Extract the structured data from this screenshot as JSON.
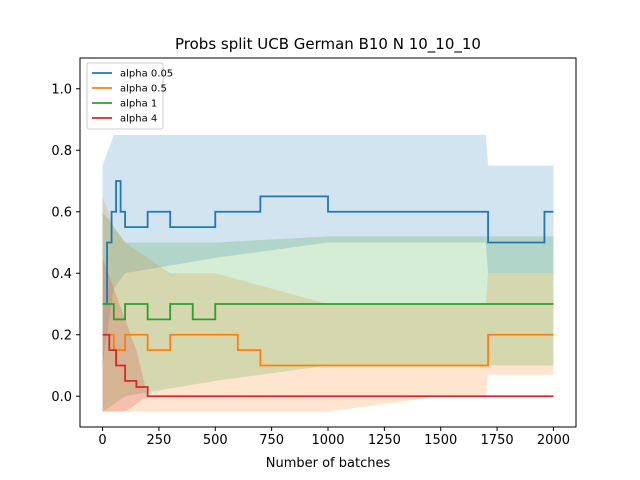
{
  "chart_data": {
    "type": "line",
    "title": "Probs split UCB German B10 N 10_10_10",
    "xlabel": "Number of batches",
    "ylabel": "",
    "xlim": [
      -100,
      2100
    ],
    "ylim": [
      -0.1,
      1.1
    ],
    "x_ticks": [
      0,
      250,
      500,
      750,
      1000,
      1250,
      1500,
      1750,
      2000
    ],
    "y_ticks": [
      0.0,
      0.2,
      0.4,
      0.6,
      0.8,
      1.0
    ],
    "x_tick_labels": [
      "0",
      "250",
      "500",
      "750",
      "1000",
      "1250",
      "1500",
      "1750",
      "2000"
    ],
    "y_tick_labels": [
      "0.0",
      "0.2",
      "0.4",
      "0.6",
      "0.8",
      "1.0"
    ],
    "legend_position": "top-left",
    "grid": false,
    "series": [
      {
        "name": "alpha 0.05",
        "color": "#1f77b4",
        "band_opacity": 0.2,
        "mean": [
          [
            0,
            0.3
          ],
          [
            20,
            0.5
          ],
          [
            40,
            0.6
          ],
          [
            60,
            0.7
          ],
          [
            80,
            0.6
          ],
          [
            100,
            0.55
          ],
          [
            150,
            0.55
          ],
          [
            200,
            0.6
          ],
          [
            300,
            0.55
          ],
          [
            400,
            0.55
          ],
          [
            500,
            0.6
          ],
          [
            600,
            0.6
          ],
          [
            700,
            0.65
          ],
          [
            800,
            0.65
          ],
          [
            900,
            0.65
          ],
          [
            1000,
            0.6
          ],
          [
            1100,
            0.6
          ],
          [
            1300,
            0.6
          ],
          [
            1500,
            0.6
          ],
          [
            1700,
            0.6
          ],
          [
            1710,
            0.5
          ],
          [
            1950,
            0.5
          ],
          [
            1960,
            0.6
          ],
          [
            2000,
            0.6
          ]
        ],
        "upper": [
          [
            0,
            0.75
          ],
          [
            50,
            0.85
          ],
          [
            100,
            0.85
          ],
          [
            500,
            0.85
          ],
          [
            1000,
            0.85
          ],
          [
            1500,
            0.85
          ],
          [
            1700,
            0.85
          ],
          [
            1710,
            0.75
          ],
          [
            2000,
            0.75
          ]
        ],
        "lower": [
          [
            0,
            0.1
          ],
          [
            50,
            0.35
          ],
          [
            100,
            0.4
          ],
          [
            500,
            0.45
          ],
          [
            1000,
            0.5
          ],
          [
            1500,
            0.5
          ],
          [
            1700,
            0.5
          ],
          [
            1710,
            0.4
          ],
          [
            2000,
            0.4
          ]
        ]
      },
      {
        "name": "alpha 0.5",
        "color": "#ff7f0e",
        "band_opacity": 0.2,
        "mean": [
          [
            0,
            0.2
          ],
          [
            50,
            0.15
          ],
          [
            100,
            0.2
          ],
          [
            200,
            0.15
          ],
          [
            300,
            0.2
          ],
          [
            400,
            0.2
          ],
          [
            500,
            0.2
          ],
          [
            600,
            0.15
          ],
          [
            700,
            0.1
          ],
          [
            800,
            0.1
          ],
          [
            900,
            0.1
          ],
          [
            1000,
            0.1
          ],
          [
            1100,
            0.1
          ],
          [
            1300,
            0.1
          ],
          [
            1500,
            0.1
          ],
          [
            1700,
            0.1
          ],
          [
            1710,
            0.2
          ],
          [
            2000,
            0.2
          ]
        ],
        "upper": [
          [
            0,
            0.65
          ],
          [
            50,
            0.55
          ],
          [
            100,
            0.5
          ],
          [
            200,
            0.45
          ],
          [
            300,
            0.4
          ],
          [
            500,
            0.4
          ],
          [
            1000,
            0.3
          ],
          [
            1500,
            0.3
          ],
          [
            1700,
            0.3
          ],
          [
            1710,
            0.4
          ],
          [
            2000,
            0.4
          ]
        ],
        "lower": [
          [
            0,
            -0.05
          ],
          [
            50,
            -0.05
          ],
          [
            100,
            -0.05
          ],
          [
            500,
            -0.05
          ],
          [
            1000,
            -0.05
          ],
          [
            1500,
            0.0
          ],
          [
            1700,
            0.0
          ],
          [
            1710,
            0.07
          ],
          [
            2000,
            0.07
          ]
        ]
      },
      {
        "name": "alpha 1",
        "color": "#2ca02c",
        "band_opacity": 0.2,
        "mean": [
          [
            0,
            0.3
          ],
          [
            50,
            0.25
          ],
          [
            100,
            0.3
          ],
          [
            200,
            0.25
          ],
          [
            300,
            0.3
          ],
          [
            400,
            0.25
          ],
          [
            500,
            0.3
          ],
          [
            600,
            0.3
          ],
          [
            700,
            0.3
          ],
          [
            800,
            0.3
          ],
          [
            900,
            0.3
          ],
          [
            1000,
            0.3
          ],
          [
            1100,
            0.3
          ],
          [
            1500,
            0.3
          ],
          [
            2000,
            0.3
          ]
        ],
        "upper": [
          [
            0,
            0.6
          ],
          [
            50,
            0.55
          ],
          [
            100,
            0.5
          ],
          [
            200,
            0.5
          ],
          [
            300,
            0.5
          ],
          [
            500,
            0.5
          ],
          [
            1000,
            0.52
          ],
          [
            1500,
            0.52
          ],
          [
            2000,
            0.52
          ]
        ],
        "lower": [
          [
            0,
            -0.05
          ],
          [
            100,
            0.0
          ],
          [
            500,
            0.05
          ],
          [
            1000,
            0.1
          ],
          [
            1500,
            0.1
          ],
          [
            2000,
            0.1
          ]
        ]
      },
      {
        "name": "alpha 4",
        "color": "#d62728",
        "band_opacity": 0.2,
        "mean": [
          [
            0,
            0.2
          ],
          [
            30,
            0.15
          ],
          [
            60,
            0.1
          ],
          [
            100,
            0.05
          ],
          [
            150,
            0.03
          ],
          [
            200,
            0.0
          ],
          [
            500,
            0.0
          ],
          [
            1000,
            0.0
          ],
          [
            1500,
            0.0
          ],
          [
            1700,
            0.0
          ],
          [
            1710,
            0.0
          ],
          [
            2000,
            0.0
          ]
        ],
        "upper": [
          [
            0,
            0.45
          ],
          [
            50,
            0.35
          ],
          [
            100,
            0.25
          ],
          [
            150,
            0.15
          ],
          [
            200,
            0.0
          ],
          [
            2000,
            0.0
          ]
        ],
        "lower": [
          [
            0,
            -0.05
          ],
          [
            100,
            -0.05
          ],
          [
            200,
            0.0
          ],
          [
            2000,
            0.0
          ]
        ]
      }
    ]
  }
}
